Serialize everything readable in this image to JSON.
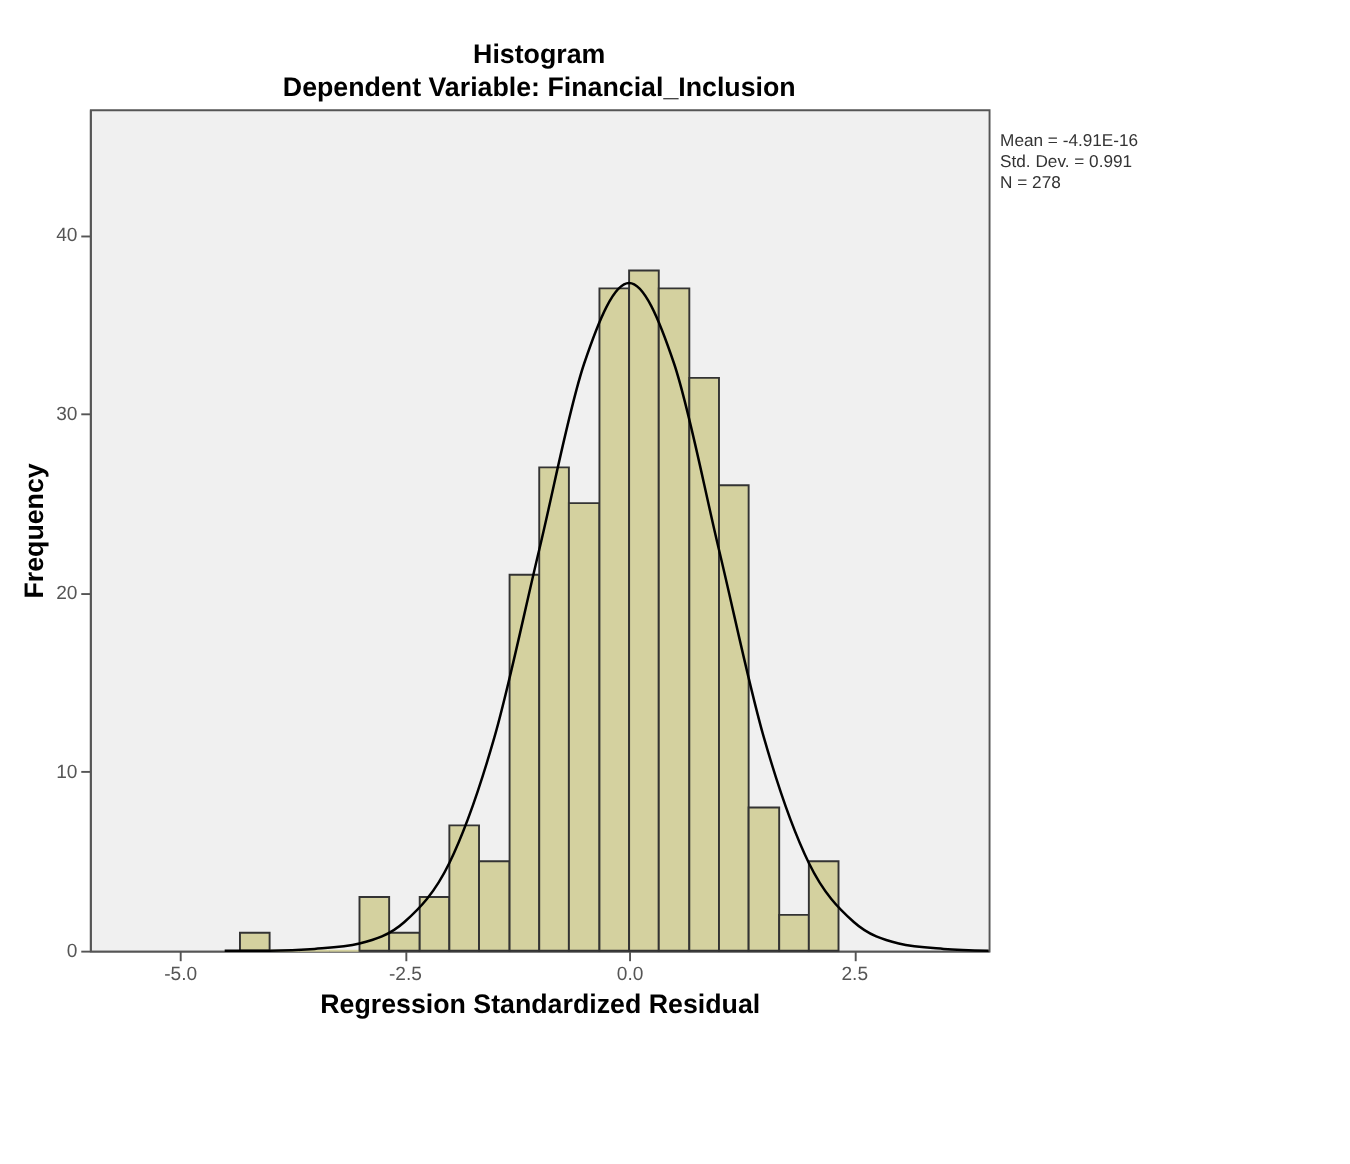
{
  "chart_data": {
    "type": "histogram",
    "title": "Histogram",
    "subtitle": "Dependent Variable: Financial_Inclusion",
    "xlabel": "Regression Standardized Residual",
    "ylabel": "Frequency",
    "bins": [
      -4.33,
      -4,
      -3.67,
      -3.33,
      -3,
      -2.67,
      -2.33,
      -2,
      -1.67,
      -1.33,
      -1,
      -0.67,
      -0.33,
      0,
      0.33,
      0.67,
      1,
      1.33,
      1.67,
      2,
      2.33
    ],
    "values": [
      1,
      0,
      0,
      0,
      3,
      1,
      3,
      7,
      5,
      21,
      27,
      25,
      37,
      38,
      37,
      32,
      26,
      8,
      2,
      5
    ],
    "color": "#d4d19f",
    "series": [
      {
        "type": "line",
        "color": "#000000",
        "x": [
          -4.5,
          -4,
          -3.5,
          -3,
          -2.5,
          -2,
          -1.5,
          -1,
          -0.5,
          0,
          0.5,
          1,
          1.5,
          2,
          2.5,
          3,
          3.5,
          4
        ],
        "values": [
          0.0,
          0.0,
          0.1,
          0.4,
          1.6,
          4.9,
          11.9,
          22.4,
          32.8,
          37.3,
          32.8,
          22.4,
          11.9,
          4.9,
          1.6,
          0.4,
          0.1,
          0.0
        ]
      }
    ],
    "xlim": [
      -6,
      4
    ],
    "ylim": [
      0,
      47
    ],
    "xticks": [
      {
        "value": -5,
        "label": "-5.0"
      },
      {
        "value": -2.5,
        "label": "-2.5"
      },
      {
        "value": 0,
        "label": "0.0"
      },
      {
        "value": 2.5,
        "label": "2.5"
      }
    ],
    "yticks": [
      0,
      10,
      20,
      30,
      40
    ],
    "grid": false,
    "annotations": [
      "Mean = -4.91E-16",
      "Std. Dev. = 0.991",
      "N = 278"
    ]
  }
}
